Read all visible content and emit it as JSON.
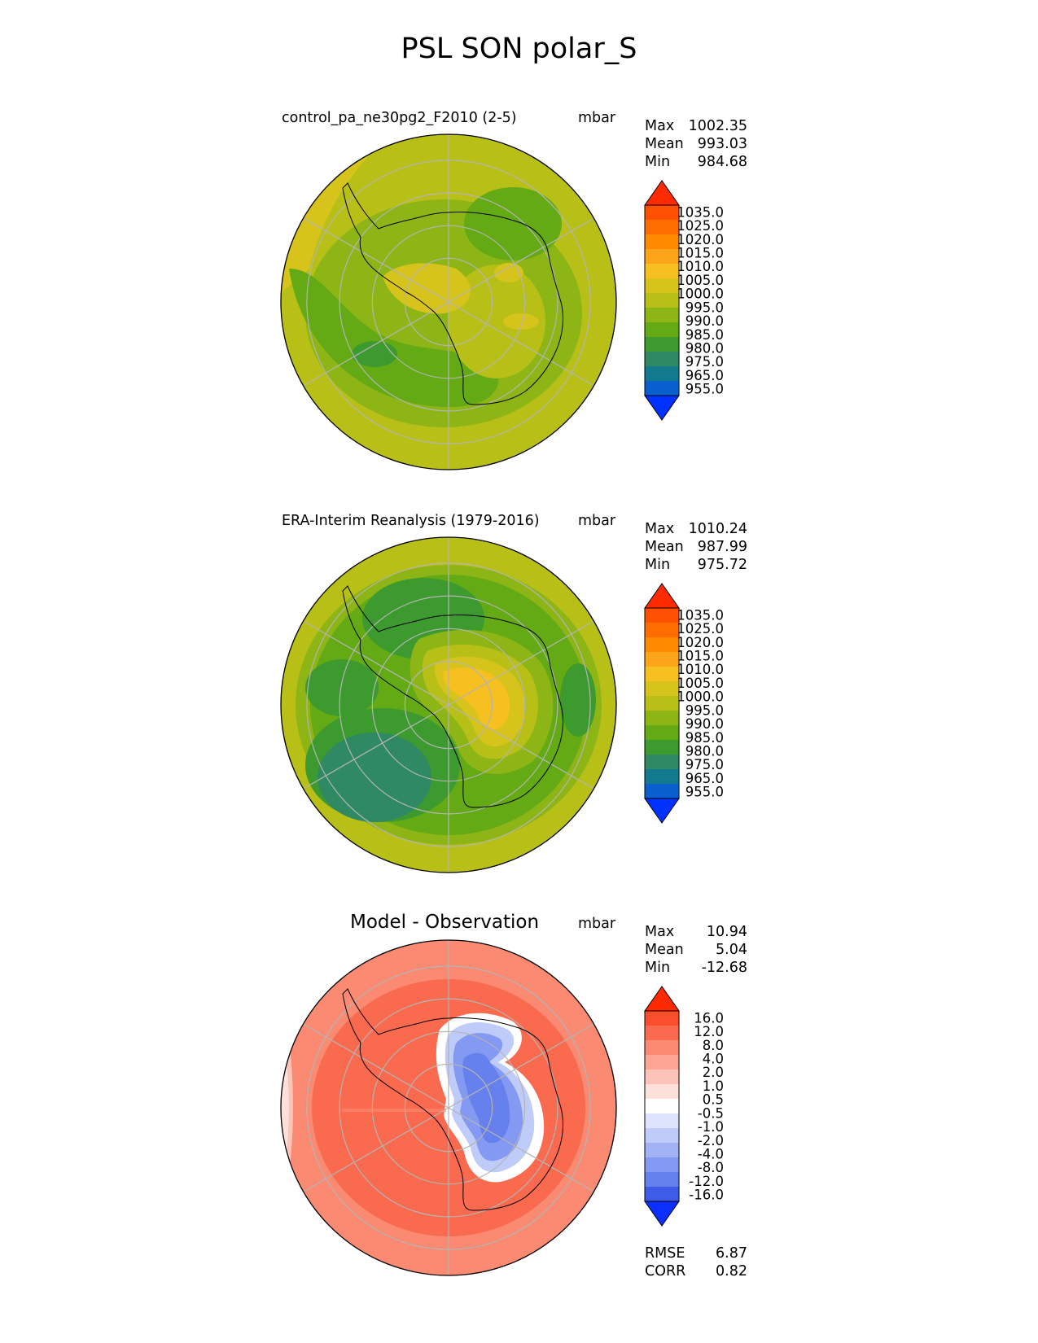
{
  "figure": {
    "title": "PSL SON polar_S"
  },
  "panels": [
    {
      "title": "control_pa_ne30pg2_F2010 (2-5)",
      "units": "mbar",
      "stats": [
        {
          "label": "Max",
          "value": "1002.35"
        },
        {
          "label": "Mean",
          "value": "993.03"
        },
        {
          "label": "Min",
          "value": "984.68"
        }
      ]
    },
    {
      "title": "ERA-Interim Reanalysis (1979-2016)",
      "units": "mbar",
      "stats": [
        {
          "label": "Max",
          "value": "1010.24"
        },
        {
          "label": "Mean",
          "value": "987.99"
        },
        {
          "label": "Min",
          "value": "975.72"
        }
      ]
    },
    {
      "title": "Model - Observation",
      "units": "mbar",
      "stats": [
        {
          "label": "Max",
          "value": "10.94"
        },
        {
          "label": "Mean",
          "value": "5.04"
        },
        {
          "label": "Min",
          "value": "-12.68"
        }
      ],
      "metrics": [
        {
          "label": "RMSE",
          "value": "6.87"
        },
        {
          "label": "CORR",
          "value": "0.82"
        }
      ]
    }
  ],
  "colorbars": {
    "field": {
      "labels": [
        "1035.0",
        "1025.0",
        "1020.0",
        "1015.0",
        "1010.0",
        "1005.0",
        "1000.0",
        "995.0",
        "990.0",
        "985.0",
        "980.0",
        "975.0",
        "965.0",
        "955.0"
      ],
      "colors_top_to_bottom": [
        "#ff2b00",
        "#ff4f00",
        "#ff6c00",
        "#ff8a00",
        "#fca51a",
        "#f5c020",
        "#d6c41c",
        "#b8c018",
        "#8eb516",
        "#63aa14",
        "#3d9a2f",
        "#2f8a64",
        "#117a8f",
        "#0a5fcf",
        "#0032ff"
      ]
    },
    "diff": {
      "labels": [
        "16.0",
        "12.0",
        "8.0",
        "4.0",
        "2.0",
        "1.0",
        "0.5",
        "-0.5",
        "-1.0",
        "-2.0",
        "-4.0",
        "-8.0",
        "-12.0",
        "-16.0"
      ],
      "colors_top_to_bottom": [
        "#ff2a00",
        "#fb4e2e",
        "#fa6a4e",
        "#fb8a72",
        "#fca595",
        "#fdc3b8",
        "#fee0da",
        "#ffffff",
        "#dde4fb",
        "#bfcbf8",
        "#a2b2f4",
        "#8499f1",
        "#6680ed",
        "#3f5ce9",
        "#0a2fff"
      ]
    }
  },
  "colors": {
    "coast": "#000000",
    "grid": "#b4b4b4"
  }
}
